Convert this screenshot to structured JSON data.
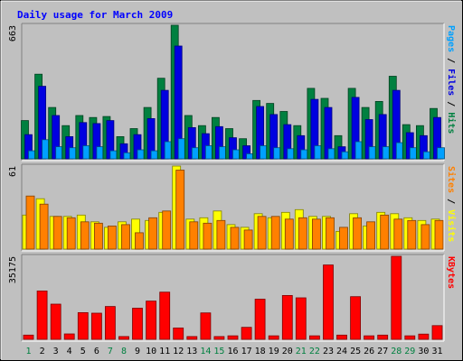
{
  "chart_data": {
    "type": "bar",
    "title": "Daily usage for March 2009",
    "categories": [
      "1",
      "2",
      "3",
      "4",
      "5",
      "6",
      "7",
      "8",
      "9",
      "10",
      "11",
      "12",
      "13",
      "14",
      "15",
      "16",
      "17",
      "18",
      "19",
      "20",
      "21",
      "22",
      "23",
      "24",
      "25",
      "26",
      "27",
      "28",
      "29",
      "30",
      "31"
    ],
    "weekend_days": [
      "1",
      "7",
      "8",
      "14",
      "15",
      "21",
      "22",
      "28",
      "29"
    ],
    "panels": [
      {
        "id": "top",
        "ymax": 663,
        "ymax_label": "663",
        "side_labels": [
          {
            "text": "Pages",
            "color": "#00a0ff"
          },
          {
            "text": " / ",
            "color": "#000000"
          },
          {
            "text": "Files",
            "color": "#0000e0"
          },
          {
            "text": " / ",
            "color": "#000000"
          },
          {
            "text": "Hits",
            "color": "#008040"
          }
        ],
        "series": [
          {
            "name": "Hits",
            "color": "#008040",
            "border": "#004020",
            "values": [
              190,
              420,
              255,
              165,
              215,
              205,
              210,
              110,
              150,
              255,
              400,
              663,
              215,
              165,
              205,
              150,
              100,
              290,
              275,
              235,
              165,
              350,
              300,
              115,
              350,
              255,
              285,
              410,
              170,
              165,
              250
            ]
          },
          {
            "name": "Files",
            "color": "#0000e0",
            "border": "#000080",
            "values": [
              120,
              360,
              215,
              110,
              180,
              175,
              190,
              75,
              120,
              200,
              340,
              560,
              155,
              125,
              160,
              105,
              65,
              260,
              220,
              170,
              115,
              295,
              255,
              60,
              305,
              195,
              220,
              340,
              130,
              115,
              205
            ]
          },
          {
            "name": "Pages",
            "color": "#00a0ff",
            "border": "#005080",
            "values": [
              40,
              95,
              60,
              55,
              65,
              60,
              40,
              30,
              45,
              40,
              85,
              100,
              55,
              65,
              60,
              45,
              25,
              65,
              55,
              50,
              45,
              65,
              50,
              35,
              85,
              60,
              60,
              80,
              55,
              35,
              55
            ]
          }
        ]
      },
      {
        "id": "middle",
        "ymax": 61,
        "ymax_label": "61",
        "side_labels": [
          {
            "text": "Sites",
            "color": "#ff8000"
          },
          {
            "text": " / ",
            "color": "#000000"
          },
          {
            "text": "Visits",
            "color": "#ffff00"
          }
        ],
        "series": [
          {
            "name": "Visits",
            "color": "#ffff00",
            "border": "#808000",
            "values": [
              25,
              37,
              24,
              24,
              25,
              20,
              16,
              20,
              22,
              21,
              27,
              61,
              22,
              23,
              28,
              18,
              16,
              26,
              23,
              27,
              29,
              24,
              24,
              13,
              26,
              17,
              27,
              26,
              23,
              21,
              22
            ]
          },
          {
            "name": "Sites",
            "color": "#ff8000",
            "border": "#804000",
            "values": [
              39,
              33,
              24,
              23,
              20,
              19,
              17,
              18,
              12,
              23,
              28,
              58,
              20,
              19,
              21,
              16,
              14,
              24,
              24,
              22,
              23,
              22,
              23,
              16,
              23,
              20,
              25,
              22,
              21,
              18,
              21
            ]
          }
        ]
      },
      {
        "id": "bottom",
        "ymax": 35175,
        "ymax_label": "35175",
        "side_labels": [
          {
            "text": "KBytes",
            "color": "#ff0000"
          }
        ],
        "series": [
          {
            "name": "KBytes",
            "color": "#ff0000",
            "border": "#800000",
            "values": [
              1800,
              20500,
              14900,
              2300,
              11300,
              11100,
              13900,
              1200,
              13200,
              16200,
              20000,
              4800,
              1200,
              11200,
              1200,
              1500,
              5100,
              17000,
              1500,
              18600,
              17600,
              1500,
              31500,
              1800,
              18100,
              1500,
              1800,
              35175,
              1500,
              2200,
              5800
            ]
          }
        ]
      }
    ]
  }
}
